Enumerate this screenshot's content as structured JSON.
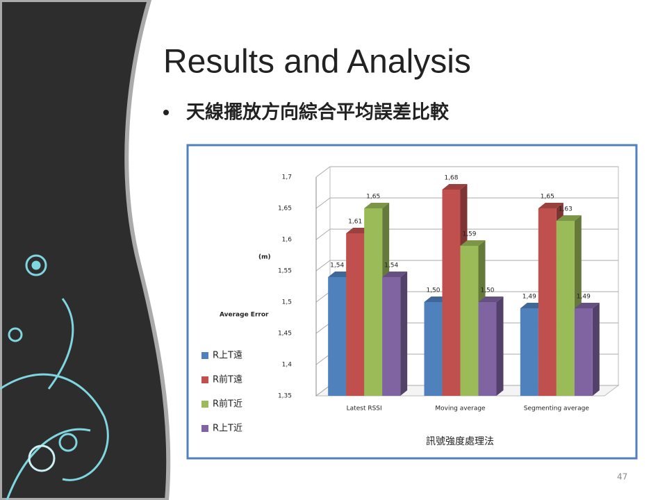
{
  "slide": {
    "title": "Results and Analysis",
    "bullet": "天線擺放方向綜合平均誤差比較",
    "page_number": "47"
  },
  "chart_data": {
    "type": "bar3d",
    "y_label_unit": "(m)",
    "y_label": "Average Error",
    "x_label": "訊號強度處理法",
    "categories": [
      "Latest RSSI",
      "Moving average",
      "Segmenting average"
    ],
    "series": [
      {
        "name": "R上T遠",
        "color": "#4f81bd",
        "values": [
          1.54,
          1.5,
          1.49
        ],
        "value_labels": [
          "1,54",
          "1,50",
          "1,49"
        ]
      },
      {
        "name": "R前T遠",
        "color": "#c0504d",
        "values": [
          1.61,
          1.68,
          1.65
        ],
        "value_labels": [
          "1,61",
          "1,68",
          "1,65"
        ]
      },
      {
        "name": "R前T近",
        "color": "#9bbb59",
        "values": [
          1.65,
          1.59,
          1.63
        ],
        "value_labels": [
          "1,65",
          "1,59",
          "1,63"
        ]
      },
      {
        "name": "R上T近",
        "color": "#8064a2",
        "values": [
          1.54,
          1.5,
          1.49
        ],
        "value_labels": [
          "1,54",
          "1,50",
          "1,49"
        ]
      }
    ],
    "ylim": [
      1.35,
      1.7
    ],
    "yticks": [
      {
        "value": 1.35,
        "label": "1,35"
      },
      {
        "value": 1.4,
        "label": "1,4"
      },
      {
        "value": 1.45,
        "label": "1,45"
      },
      {
        "value": 1.5,
        "label": "1,5"
      },
      {
        "value": 1.55,
        "label": "1,55"
      },
      {
        "value": 1.6,
        "label": "1,6"
      },
      {
        "value": 1.65,
        "label": "1,65"
      },
      {
        "value": 1.7,
        "label": "1,7"
      }
    ],
    "grid": true
  }
}
